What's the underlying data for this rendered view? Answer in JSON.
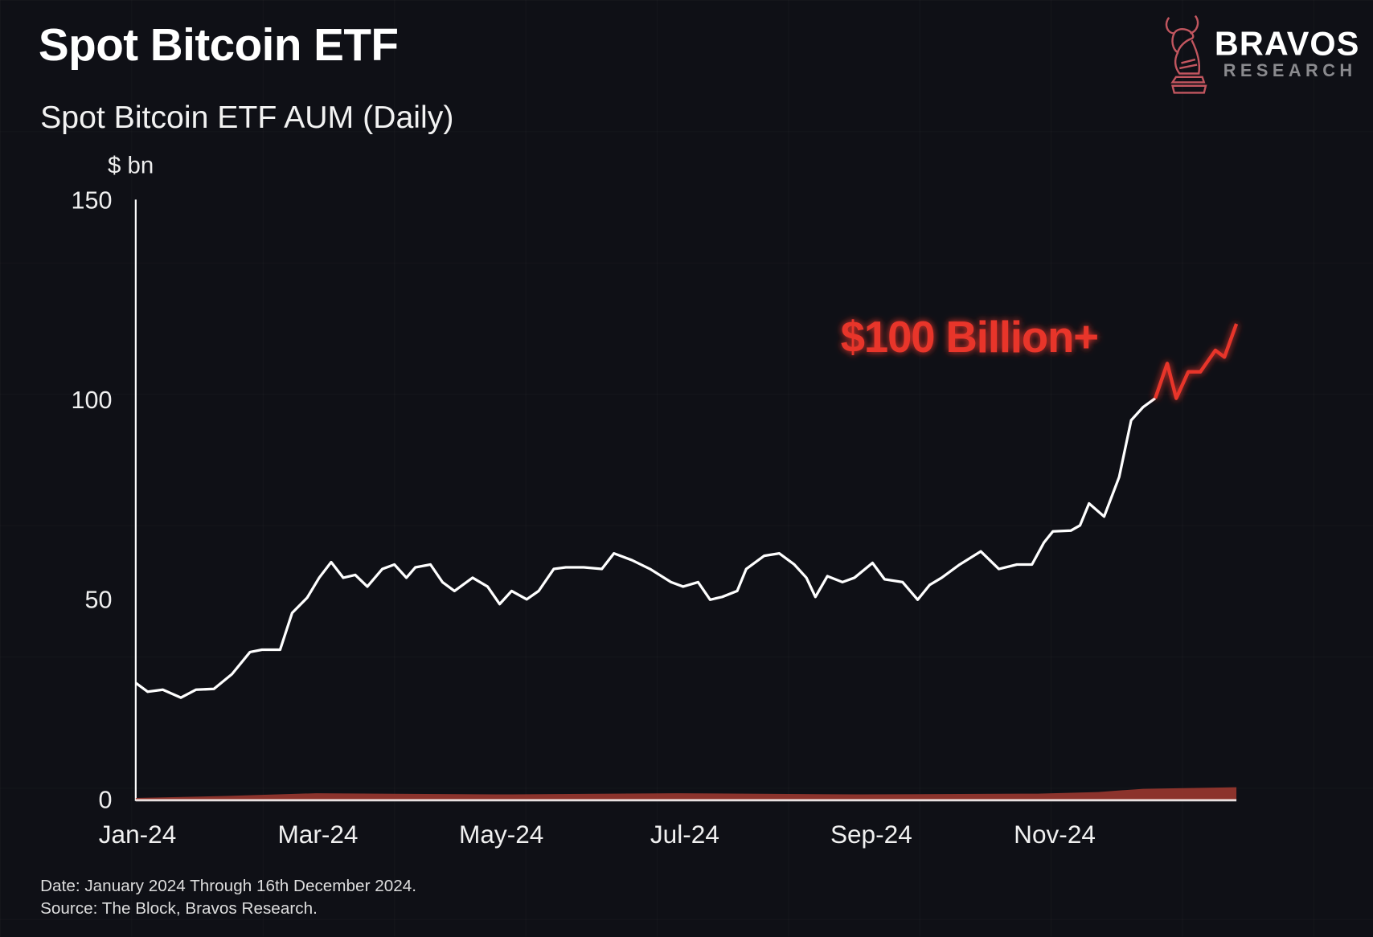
{
  "header": {
    "title": "Spot Bitcoin ETF",
    "logo": {
      "name": "BRAVOS",
      "sub": "RESEARCH"
    }
  },
  "footer": {
    "date_note": "Date: January 2024 Through 16th December 2024.",
    "source_note": "Source: The Block, Bravos Research."
  },
  "colors": {
    "background": "#0f1016",
    "line": "#ffffff",
    "highlight": "#e8352a",
    "area": "#a23a30"
  },
  "chart_data": {
    "type": "line",
    "title": "Spot Bitcoin ETF AUM (Daily)",
    "ylabel": "$ bn",
    "xlabel": "",
    "x_unit": "days since 2024-01-01",
    "xlim": [
      0,
      366
    ],
    "ylim": [
      0,
      150
    ],
    "yticks": [
      0,
      50,
      100,
      150
    ],
    "xticks": [
      {
        "day": 0,
        "label": "Jan-24"
      },
      {
        "day": 60,
        "label": "Mar-24"
      },
      {
        "day": 121,
        "label": "May-24"
      },
      {
        "day": 182,
        "label": "Jul-24"
      },
      {
        "day": 244,
        "label": "Sep-24"
      },
      {
        "day": 305,
        "label": "Nov-24"
      }
    ],
    "threshold": {
      "value": 100,
      "label": "$100 Billion+",
      "style": "dashed-glow"
    },
    "grid": false,
    "series": [
      {
        "name": "Spot Bitcoin ETF AUM",
        "x": [
          0,
          4,
          9,
          15,
          20,
          26,
          32,
          38,
          42,
          48,
          52,
          57,
          61,
          65,
          69,
          73,
          77,
          82,
          86,
          90,
          93,
          98,
          102,
          106,
          112,
          117,
          121,
          125,
          130,
          134,
          139,
          143,
          149,
          155,
          159,
          165,
          171,
          178,
          182,
          187,
          191,
          195,
          200,
          203,
          209,
          214,
          219,
          223,
          226,
          230,
          235,
          239,
          245,
          249,
          255,
          260,
          264,
          268,
          274,
          281,
          287,
          293,
          298,
          302,
          305,
          311,
          314,
          317,
          322,
          327,
          331,
          335,
          339,
          343,
          346,
          350,
          354,
          359,
          362,
          366
        ],
        "values": [
          29.1,
          26.9,
          27.4,
          25.4,
          27.4,
          27.6,
          31.3,
          36.8,
          37.4,
          37.4,
          46.6,
          50.4,
          55.4,
          59.3,
          55.4,
          56.1,
          53.2,
          57.6,
          58.7,
          55.4,
          58,
          58.7,
          54.3,
          52.1,
          55.4,
          53.2,
          48.8,
          52.1,
          50,
          52.1,
          57.6,
          58,
          58,
          57.6,
          61.5,
          59.8,
          57.6,
          54.3,
          53.2,
          54.3,
          49.9,
          50.6,
          52.1,
          57.6,
          60.9,
          61.5,
          58.7,
          55.4,
          50.6,
          55.8,
          54.3,
          55.4,
          59.1,
          55,
          54.3,
          49.9,
          53.6,
          55.4,
          58.7,
          62,
          57.6,
          58.7,
          58.7,
          64.2,
          67,
          67.2,
          68.5,
          74,
          70.7,
          80.6,
          94.8,
          98.1,
          100.3,
          109,
          100.3,
          106.9,
          106.9,
          112.3,
          110.6,
          118.9
        ]
      },
      {
        "name": "Lower band (area)",
        "x": [
          0,
          30,
          60,
          120,
          180,
          240,
          300,
          320,
          335,
          366
        ],
        "values": [
          0.3,
          0.8,
          1.5,
          1.2,
          1.5,
          1.2,
          1.4,
          1.8,
          2.6,
          3.0
        ]
      }
    ]
  }
}
